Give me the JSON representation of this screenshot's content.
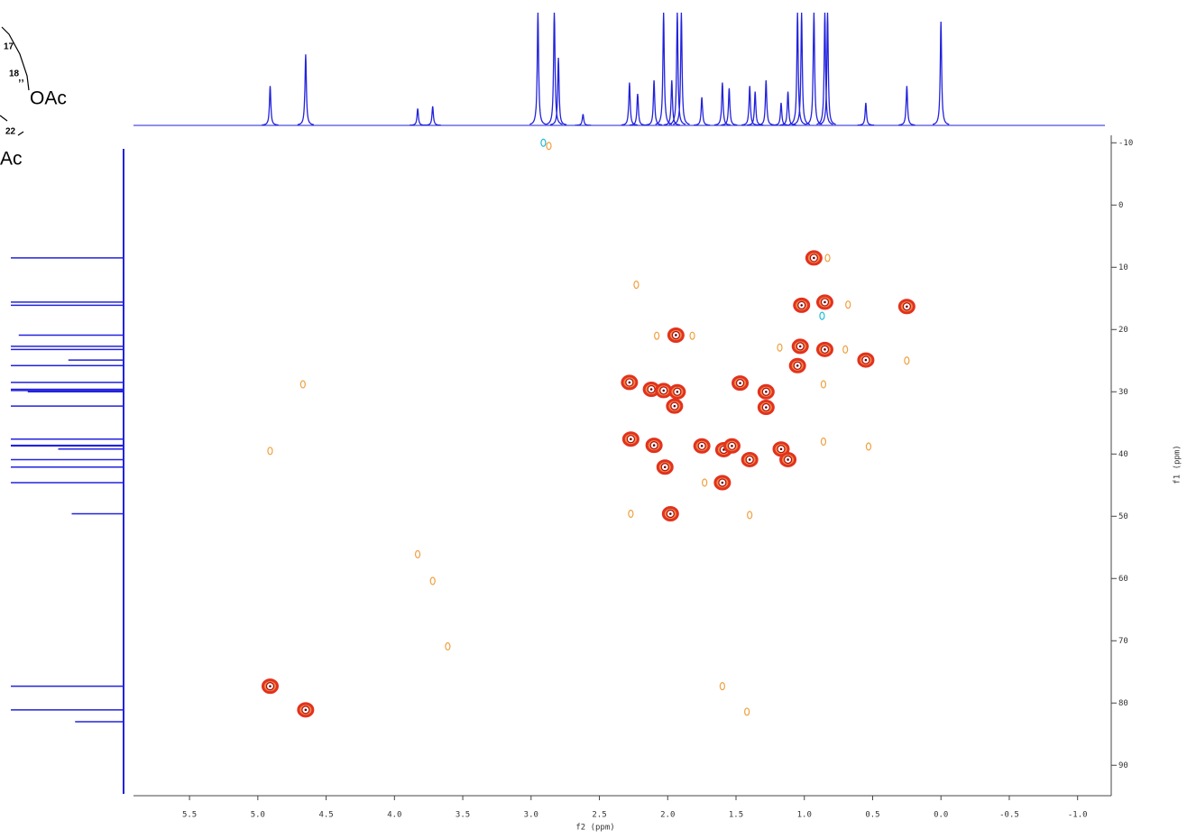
{
  "chart_data": {
    "type": "scatter",
    "xlabel": "f2 (ppm)",
    "ylabel": "f1 (ppm)",
    "xlim": [
      5.91,
      -1.2
    ],
    "ylim": [
      -11.2,
      94.6
    ],
    "xticks": [
      5.5,
      {
        "value": 5,
        "label": "5.0"
      },
      4.5,
      {
        "value": 4,
        "label": "4.0"
      },
      3.5,
      {
        "value": 3,
        "label": "3.0"
      },
      2.5,
      {
        "value": 2,
        "label": "2.0"
      },
      1.5,
      {
        "value": 1,
        "label": "1.0"
      },
      0.5,
      {
        "value": 0,
        "label": "0.0"
      },
      -0.5,
      {
        "value": -1,
        "label": "-1.0"
      }
    ],
    "yticks": [
      -10,
      0,
      10,
      20,
      30,
      40,
      50,
      60,
      70,
      80,
      90
    ],
    "structure_labels": [
      "17",
      "18",
      "OAc",
      "22",
      "Ac"
    ],
    "series": [
      {
        "color": "#e2321d",
        "x": [
          4.91,
          4.65,
          2.28,
          2.27,
          2.12,
          2.1,
          2.03,
          2.02,
          1.98,
          1.94,
          1.93,
          1.95,
          1.75,
          1.6,
          1.59,
          1.53,
          1.47,
          1.4,
          1.28,
          1.28,
          1.17,
          1.12,
          1.05,
          1.03,
          1.02,
          0.93,
          0.85,
          0.85,
          0.55,
          0.25
        ],
        "values": [
          77.3,
          81.1,
          28.5,
          37.6,
          29.6,
          38.6,
          29.8,
          42.1,
          49.6,
          20.9,
          30.0,
          32.3,
          38.7,
          44.6,
          39.3,
          38.7,
          28.6,
          40.9,
          30.0,
          32.5,
          39.2,
          40.9,
          25.8,
          22.7,
          16.1,
          8.5,
          15.6,
          23.2,
          24.9,
          16.3
        ]
      },
      {
        "color": "#f0a040",
        "x": [
          3.83,
          3.72,
          4.91,
          4.67,
          3.61,
          2.23,
          2.08,
          1.82,
          1.6,
          1.4,
          1.42,
          1.18,
          0.86,
          0.86,
          0.68,
          0.7,
          0.53,
          0.25,
          0.83,
          2.27,
          2.87,
          1.73
        ],
        "values": [
          56.1,
          60.4,
          39.5,
          28.8,
          70.9,
          12.8,
          21.0,
          21.0,
          77.3,
          49.8,
          81.4,
          22.9,
          28.8,
          38.0,
          16.0,
          23.2,
          38.8,
          25.0,
          8.5,
          49.6,
          -9.5,
          44.6
        ]
      },
      {
        "color": "#20bcd8",
        "x": [
          2.91,
          0.87
        ],
        "values": [
          -10.0,
          17.8
        ]
      }
    ],
    "top_projection": {
      "color": "#2222dd",
      "x": [
        4.91,
        4.65,
        3.83,
        3.72,
        2.95,
        2.83,
        2.8,
        2.62,
        2.28,
        2.22,
        2.1,
        2.03,
        1.97,
        1.93,
        1.9,
        1.75,
        1.6,
        1.55,
        1.4,
        1.36,
        1.28,
        1.17,
        1.12,
        1.05,
        1.02,
        0.93,
        0.85,
        0.83,
        0.55,
        0.25,
        0.0
      ],
      "values": [
        0.35,
        0.63,
        0.15,
        0.17,
        1.0,
        1.0,
        0.6,
        0.1,
        0.38,
        0.28,
        0.4,
        1.0,
        0.4,
        1.0,
        1.0,
        0.25,
        0.38,
        0.33,
        0.35,
        0.3,
        0.4,
        0.2,
        0.3,
        1.0,
        1.0,
        1.0,
        1.0,
        1.0,
        0.2,
        0.35,
        0.92
      ]
    },
    "side_projection": {
      "color": "#2222dd",
      "y": [
        8.5,
        15.6,
        16.1,
        20.9,
        22.7,
        23.2,
        24.9,
        25.8,
        28.5,
        29.6,
        29.8,
        30.0,
        32.3,
        37.6,
        38.6,
        38.7,
        39.2,
        40.9,
        42.1,
        44.6,
        49.6,
        77.3,
        81.1,
        83.0
      ],
      "values": [
        1.0,
        1.0,
        1.0,
        0.93,
        1.0,
        1.0,
        0.49,
        1.0,
        1.0,
        1.0,
        1.0,
        0.85,
        1.0,
        1.0,
        1.0,
        1.0,
        0.58,
        1.0,
        1.0,
        1.0,
        0.46,
        1.0,
        1.0,
        0.43
      ]
    }
  }
}
